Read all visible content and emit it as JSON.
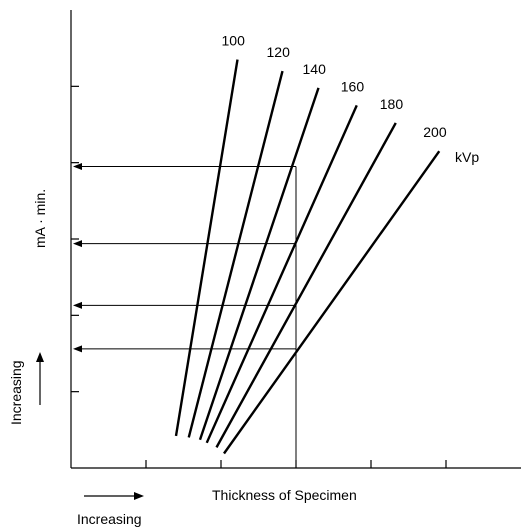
{
  "chart_data": {
    "type": "line",
    "title": "",
    "xlabel": "Thickness of Specimen",
    "ylabel": "mA · min.",
    "x_direction_label": "Increasing",
    "y_direction_label": "Increasing",
    "unit_label": "kVp",
    "xlim": [
      0,
      6
    ],
    "ylim": [
      0,
      6
    ],
    "grid": false,
    "x_ticks": [
      1,
      2,
      3,
      4,
      5
    ],
    "y_ticks": [
      1,
      2,
      3,
      4,
      5
    ],
    "series": [
      {
        "name": "100",
        "points": [
          [
            1.4,
            0.42
          ],
          [
            2.22,
            5.35
          ]
        ]
      },
      {
        "name": "120",
        "points": [
          [
            1.57,
            0.4
          ],
          [
            2.82,
            5.2
          ]
        ]
      },
      {
        "name": "140",
        "points": [
          [
            1.72,
            0.37
          ],
          [
            3.3,
            4.98
          ]
        ]
      },
      {
        "name": "160",
        "points": [
          [
            1.81,
            0.33
          ],
          [
            3.81,
            4.75
          ]
        ]
      },
      {
        "name": "180",
        "points": [
          [
            1.94,
            0.27
          ],
          [
            4.33,
            4.52
          ]
        ]
      },
      {
        "name": "200",
        "points": [
          [
            2.04,
            0.19
          ],
          [
            4.91,
            4.15
          ]
        ]
      }
    ],
    "reference": {
      "x": 3,
      "y_readings": [
        3.95,
        2.94,
        2.13,
        1.56
      ]
    },
    "colors": {
      "lines": "#000000",
      "axes": "#000000"
    }
  }
}
